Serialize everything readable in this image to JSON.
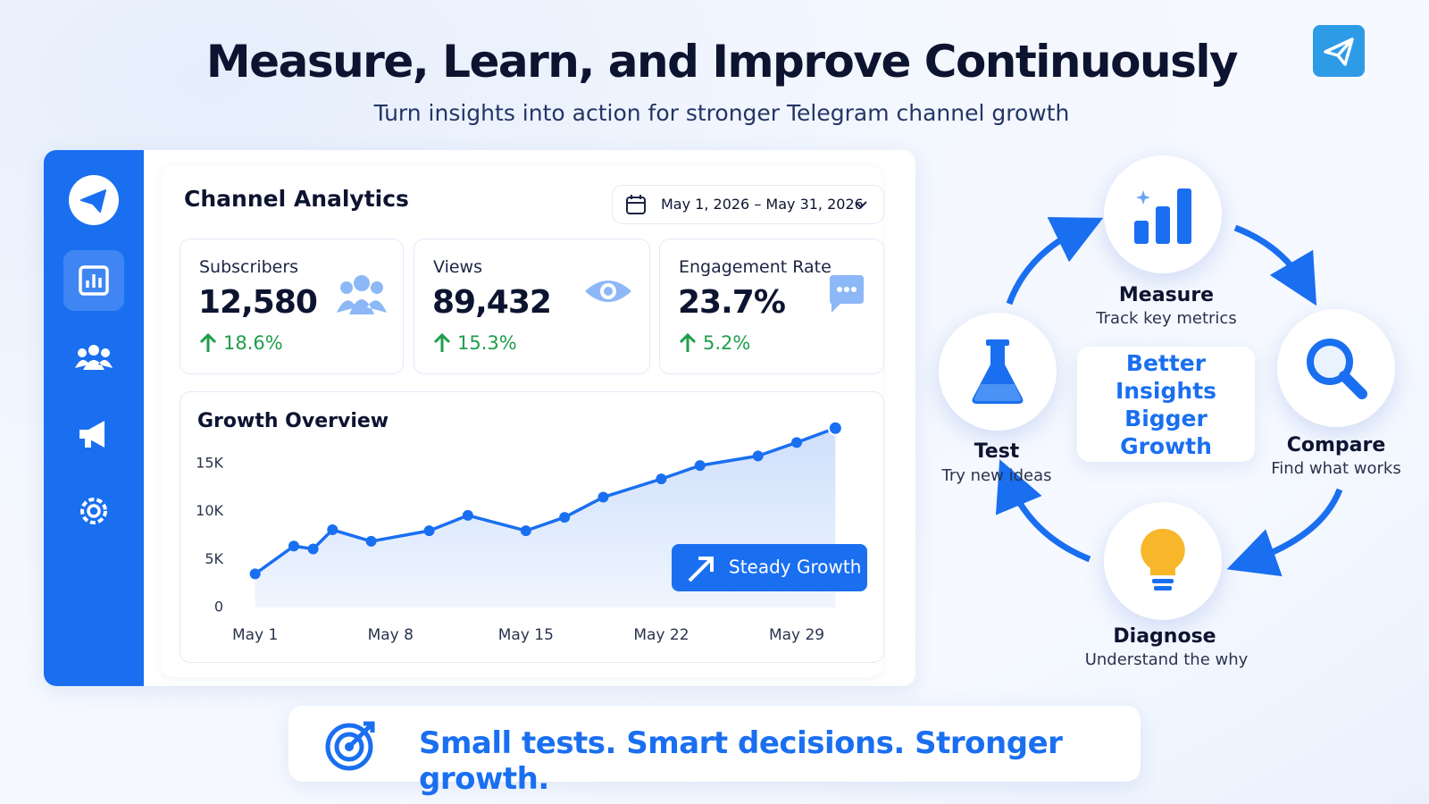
{
  "header": {
    "title": "Measure, Learn, and Improve Continuously",
    "subtitle": "Turn insights into action for stronger Telegram channel growth"
  },
  "dashboard": {
    "title": "Channel Analytics",
    "date_range": "May 1, 2026 – May 31, 2026",
    "stats": [
      {
        "label": "Subscribers",
        "value": "12,580",
        "change": "18.6%"
      },
      {
        "label": "Views",
        "value": "89,432",
        "change": "15.3%"
      },
      {
        "label": "Engagement Rate",
        "value": "23.7%",
        "change": "5.2%"
      }
    ]
  },
  "chart_data": {
    "type": "line",
    "title": "Growth Overview",
    "x": [
      1,
      3,
      4,
      5,
      7,
      10,
      12,
      15,
      17,
      19,
      22,
      24,
      27,
      29,
      31
    ],
    "xlim": [
      0,
      32
    ],
    "xticks": [
      {
        "value": 1,
        "label": "May 1"
      },
      {
        "value": 8,
        "label": "May 8"
      },
      {
        "value": 15,
        "label": "May 15"
      },
      {
        "value": 22,
        "label": "May 22"
      },
      {
        "value": 29,
        "label": "May 29"
      }
    ],
    "ylim": [
      0,
      19000
    ],
    "yticks": [
      0,
      {
        "value": 5000,
        "label": "5K"
      },
      {
        "value": 10000,
        "label": "10K"
      },
      {
        "value": 15000,
        "label": "15K"
      }
    ],
    "series": [
      {
        "color": "#1a6ff0",
        "values": [
          3500,
          6400,
          6100,
          8100,
          6900,
          8000,
          9600,
          8000,
          9400,
          11500,
          13400,
          14800,
          15800,
          17200,
          18700
        ]
      }
    ],
    "annotation": "Steady Growth",
    "grid": false
  },
  "cycle": {
    "center": [
      "Better",
      "Insights",
      "Bigger Growth"
    ],
    "steps": [
      {
        "title": "Measure",
        "subtitle": "Track key metrics"
      },
      {
        "title": "Compare",
        "subtitle": "Find what works"
      },
      {
        "title": "Diagnose",
        "subtitle": "Understand the why"
      },
      {
        "title": "Test",
        "subtitle": "Try new ideas"
      }
    ]
  },
  "footer": {
    "tagline": "Small tests. Smart decisions. Stronger growth."
  }
}
